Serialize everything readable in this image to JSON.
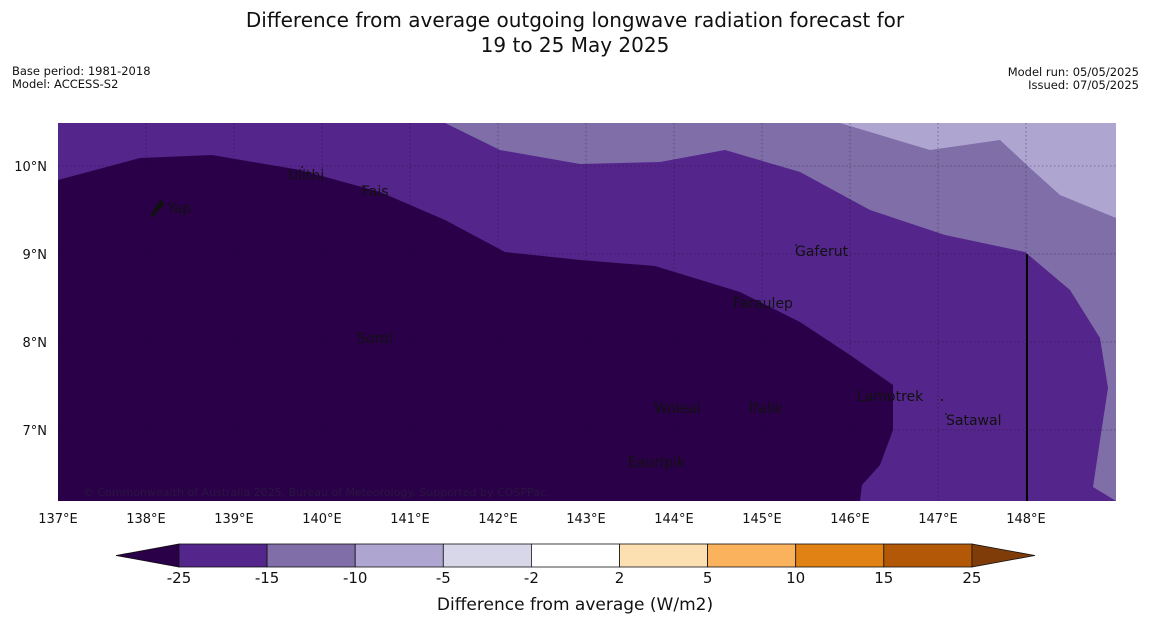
{
  "header": {
    "title_line1": "Difference from average outgoing longwave radiation forecast for",
    "title_line2": "19 to 25 May 2025",
    "base_period": "Base period: 1981-2018",
    "model": "Model: ACCESS-S2",
    "model_run": "Model run: 05/05/2025",
    "issued": "Issued: 07/05/2025"
  },
  "map": {
    "lat_labels": [
      "10°N",
      "9°N",
      "8°N",
      "7°N"
    ],
    "lon_labels": [
      "137°E",
      "138°E",
      "139°E",
      "140°E",
      "141°E",
      "142°E",
      "143°E",
      "144°E",
      "145°E",
      "146°E",
      "147°E",
      "148°E"
    ],
    "places": [
      "Yap",
      "Ulithi",
      "Fais",
      "Gaferut",
      "Faraulep",
      "Sorol",
      "Lamotrek",
      "Woleai",
      "Ifalik",
      "Satawal",
      "Eauripik"
    ],
    "copyright": "© Commonwealth of Australia 2025, Bureau of Meteorology. Supported by COSPPac.",
    "colors": {
      "below_-25": "#2a0048",
      "-25_to_-15": "#54258a",
      "-15_to_-10": "#7f6ea8",
      "-10_to_-5": "#aea6d0"
    }
  },
  "colorbar": {
    "ticks": [
      "-25",
      "-15",
      "-10",
      "-5",
      "-2",
      "2",
      "5",
      "10",
      "15",
      "25"
    ],
    "colors": [
      "#2a0048",
      "#54258a",
      "#7f6ea8",
      "#aea6d0",
      "#d8d7ea",
      "#ffffff",
      "#fde0b2",
      "#fbb25d",
      "#e08214",
      "#b35806",
      "#7f3b08"
    ],
    "label": "Difference from average (W/m2)"
  }
}
